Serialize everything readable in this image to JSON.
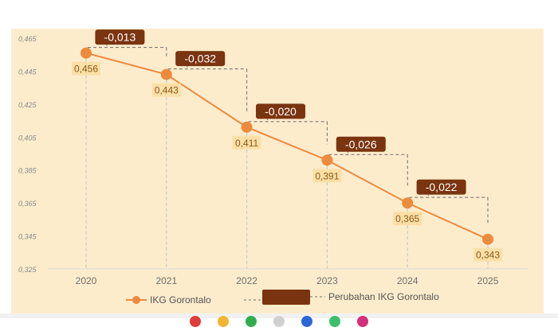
{
  "chart_data": {
    "type": "line",
    "x": [
      "2020",
      "2021",
      "2022",
      "2023",
      "2024",
      "2025"
    ],
    "series": [
      {
        "name": "IKG Gorontalo",
        "values": [
          0.456,
          0.443,
          0.411,
          0.391,
          0.365,
          0.343
        ],
        "color": "#ec8a3e"
      }
    ],
    "value_labels": [
      "0,456",
      "0,443",
      "0,411",
      "0,391",
      "0,365",
      "0,343"
    ],
    "changes": {
      "name": "Perubahan IKG Gorontalo",
      "values": [
        -0.013,
        -0.032,
        -0.02,
        -0.026,
        -0.022
      ],
      "labels": [
        "-0,013",
        "-0,032",
        "-0,020",
        "-0,026",
        "-0,022"
      ],
      "color": "#7a3410"
    },
    "y_ticks": [
      "0,465",
      "0,445",
      "0,425",
      "0,405",
      "0,385",
      "0,365",
      "0,345",
      "0,325"
    ],
    "ylim": [
      0.325,
      0.465
    ],
    "grid": false,
    "legend_position": "bottom"
  },
  "legend": {
    "series_label": "IKG Gorontalo",
    "changes_label": "Perubahan IKG Gorontalo"
  },
  "colors": {
    "panel_background": "#fdeccc",
    "line": "#ec8a3e",
    "value_label_background": "#fbdfa6",
    "change_box": "#7a3410",
    "connector": "#6b6b6b",
    "drop_line": "#c8c8c8",
    "footer_dots": [
      "#e23b3b",
      "#f2b531",
      "#2fae4e",
      "#d0d0d0",
      "#2c66d6",
      "#3bbf6a",
      "#d62e7a"
    ]
  }
}
